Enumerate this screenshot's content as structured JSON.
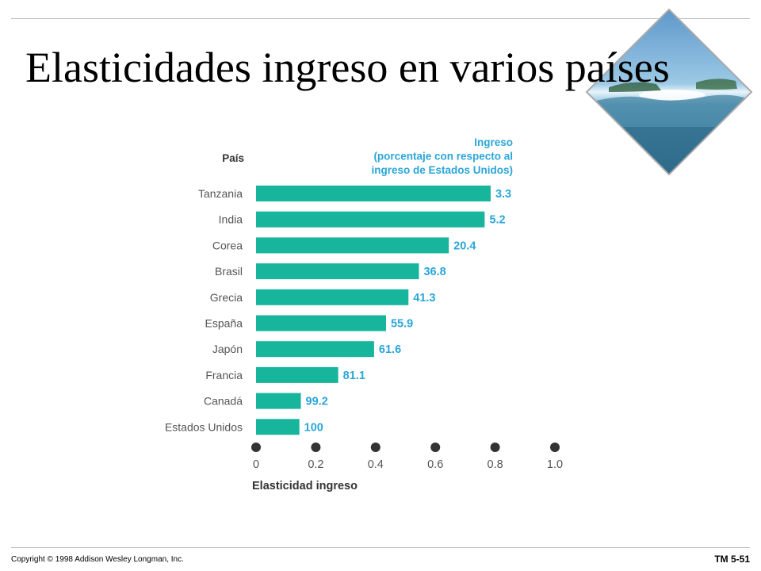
{
  "slide": {
    "title": "Elasticidades ingreso en varios países",
    "copyright": "Copyright © 1998 Addison Wesley Longman, Inc.",
    "slide_number": "TM 5-51"
  },
  "colors": {
    "bar": "#17b59c",
    "value_label": "#2aa6d8",
    "dot": "#333333",
    "axis_text": "#555555"
  },
  "chart_data": {
    "type": "bar",
    "orientation": "horizontal",
    "category_header": "País",
    "value_header_lines": [
      "Ingreso",
      "(porcentaje con respecto al",
      "ingreso de Estados Unidos)"
    ],
    "xlabel": "Elasticidad ingreso",
    "xlim": [
      0,
      1.0
    ],
    "xticks": [
      "0",
      "0.2",
      "0.4",
      "0.6",
      "0.8",
      "1.0"
    ],
    "grid": false,
    "legend": "none",
    "categories": [
      "Tanzania",
      "India",
      "Corea",
      "Brasil",
      "Grecia",
      "España",
      "Japón",
      "Francia",
      "Canadá",
      "Estados Unidos"
    ],
    "values": [
      0.785,
      0.765,
      0.645,
      0.545,
      0.51,
      0.435,
      0.395,
      0.275,
      0.15,
      0.145
    ],
    "income_labels": [
      "3.3",
      "5.2",
      "20.4",
      "36.8",
      "41.3",
      "55.9",
      "61.6",
      "81.1",
      "99.2",
      "100"
    ]
  }
}
